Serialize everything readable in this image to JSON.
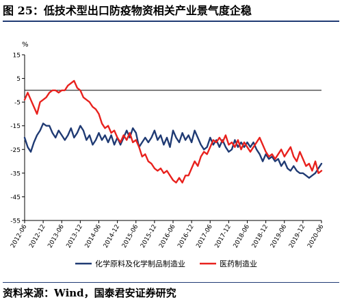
{
  "figure": {
    "title": "图 25：低技术型出口防疫物资相关产业景气度企稳",
    "source": "资料来源：Wind，国泰君安证券研究"
  },
  "chart_data": {
    "type": "line",
    "ylabel": "%",
    "ylim": [
      -55,
      15
    ],
    "yticks": [
      15,
      5,
      -5,
      -15,
      -25,
      -35,
      -45,
      -55
    ],
    "xlim": [
      "2012-06",
      "2020-06"
    ],
    "xticks": [
      "2012-06",
      "2012-12",
      "2013-06",
      "2013-12",
      "2014-06",
      "2014-12",
      "2015-06",
      "2015-12",
      "2016-06",
      "2016-12",
      "2017-06",
      "2017-12",
      "2018-06",
      "2018-12",
      "2019-06",
      "2019-12",
      "2020-06"
    ],
    "zero_line": true,
    "grid": false,
    "legend_position": "bottom",
    "series": [
      {
        "name": "化学原料及化学制品制造业",
        "color": "#1f3a73",
        "points": [
          [
            "2012-06",
            -20
          ],
          [
            "2012-07",
            -24
          ],
          [
            "2012-08",
            -26
          ],
          [
            "2012-09",
            -22
          ],
          [
            "2012-10",
            -19
          ],
          [
            "2012-11",
            -17
          ],
          [
            "2012-12",
            -14
          ],
          [
            "2013-01",
            -15
          ],
          [
            "2013-02",
            -15
          ],
          [
            "2013-03",
            -18
          ],
          [
            "2013-04",
            -20
          ],
          [
            "2013-05",
            -17
          ],
          [
            "2013-06",
            -19
          ],
          [
            "2013-07",
            -21
          ],
          [
            "2013-08",
            -19
          ],
          [
            "2013-09",
            -16
          ],
          [
            "2013-10",
            -20
          ],
          [
            "2013-11",
            -18
          ],
          [
            "2013-12",
            -15
          ],
          [
            "2014-01",
            -17
          ],
          [
            "2014-02",
            -21
          ],
          [
            "2014-03",
            -19
          ],
          [
            "2014-04",
            -23
          ],
          [
            "2014-05",
            -21
          ],
          [
            "2014-06",
            -18
          ],
          [
            "2014-07",
            -21
          ],
          [
            "2014-08",
            -19
          ],
          [
            "2014-09",
            -22
          ],
          [
            "2014-10",
            -19
          ],
          [
            "2014-11",
            -23
          ],
          [
            "2014-12",
            -20
          ],
          [
            "2015-01",
            -23
          ],
          [
            "2015-02",
            -20
          ],
          [
            "2015-03",
            -17
          ],
          [
            "2015-04",
            -20
          ],
          [
            "2015-05",
            -16
          ],
          [
            "2015-06",
            -18
          ],
          [
            "2015-07",
            -24
          ],
          [
            "2015-08",
            -22
          ],
          [
            "2015-09",
            -20
          ],
          [
            "2015-10",
            -22
          ],
          [
            "2015-11",
            -20
          ],
          [
            "2015-12",
            -17
          ],
          [
            "2016-01",
            -21
          ],
          [
            "2016-02",
            -19
          ],
          [
            "2016-03",
            -23
          ],
          [
            "2016-04",
            -20
          ],
          [
            "2016-05",
            -24
          ],
          [
            "2016-06",
            -17
          ],
          [
            "2016-07",
            -20
          ],
          [
            "2016-08",
            -22
          ],
          [
            "2016-09",
            -18
          ],
          [
            "2016-10",
            -21
          ],
          [
            "2016-11",
            -19
          ],
          [
            "2016-12",
            -22
          ],
          [
            "2017-01",
            -17
          ],
          [
            "2017-02",
            -20
          ],
          [
            "2017-03",
            -23
          ],
          [
            "2017-04",
            -25
          ],
          [
            "2017-05",
            -24
          ],
          [
            "2017-06",
            -20
          ],
          [
            "2017-07",
            -23
          ],
          [
            "2017-08",
            -21
          ],
          [
            "2017-09",
            -24
          ],
          [
            "2017-10",
            -21
          ],
          [
            "2017-11",
            -24
          ],
          [
            "2017-12",
            -26
          ],
          [
            "2018-01",
            -25
          ],
          [
            "2018-02",
            -21
          ],
          [
            "2018-03",
            -24
          ],
          [
            "2018-04",
            -22
          ],
          [
            "2018-05",
            -24
          ],
          [
            "2018-06",
            -22
          ],
          [
            "2018-07",
            -24
          ],
          [
            "2018-08",
            -22
          ],
          [
            "2018-09",
            -25
          ],
          [
            "2018-10",
            -27
          ],
          [
            "2018-11",
            -30
          ],
          [
            "2018-12",
            -27
          ],
          [
            "2019-01",
            -29
          ],
          [
            "2019-02",
            -28
          ],
          [
            "2019-03",
            -30
          ],
          [
            "2019-04",
            -29
          ],
          [
            "2019-05",
            -32
          ],
          [
            "2019-06",
            -30
          ],
          [
            "2019-07",
            -33
          ],
          [
            "2019-08",
            -34
          ],
          [
            "2019-09",
            -32
          ],
          [
            "2019-10",
            -34
          ],
          [
            "2019-11",
            -35
          ],
          [
            "2019-12",
            -35
          ],
          [
            "2020-01",
            -36
          ],
          [
            "2020-02",
            -37
          ],
          [
            "2020-03",
            -36
          ],
          [
            "2020-04",
            -35
          ],
          [
            "2020-05",
            -33
          ],
          [
            "2020-06",
            -31
          ]
        ]
      },
      {
        "name": "医药制造业",
        "color": "#e8211d",
        "points": [
          [
            "2012-06",
            -4
          ],
          [
            "2012-07",
            -1
          ],
          [
            "2012-08",
            -4
          ],
          [
            "2012-09",
            -7
          ],
          [
            "2012-10",
            -10
          ],
          [
            "2012-11",
            -5
          ],
          [
            "2012-12",
            -4
          ],
          [
            "2013-01",
            -3
          ],
          [
            "2013-02",
            -1
          ],
          [
            "2013-03",
            0
          ],
          [
            "2013-04",
            0
          ],
          [
            "2013-05",
            -1
          ],
          [
            "2013-06",
            0
          ],
          [
            "2013-07",
            0
          ],
          [
            "2013-08",
            2
          ],
          [
            "2013-09",
            3
          ],
          [
            "2013-10",
            4
          ],
          [
            "2013-11",
            1
          ],
          [
            "2013-12",
            0
          ],
          [
            "2014-01",
            -3
          ],
          [
            "2014-02",
            -4
          ],
          [
            "2014-03",
            -5
          ],
          [
            "2014-04",
            -7
          ],
          [
            "2014-05",
            -8
          ],
          [
            "2014-06",
            -10
          ],
          [
            "2014-07",
            -14
          ],
          [
            "2014-08",
            -16
          ],
          [
            "2014-09",
            -15
          ],
          [
            "2014-10",
            -18
          ],
          [
            "2014-11",
            -17
          ],
          [
            "2014-12",
            -20
          ],
          [
            "2015-01",
            -22
          ],
          [
            "2015-02",
            -19
          ],
          [
            "2015-03",
            -21
          ],
          [
            "2015-04",
            -18
          ],
          [
            "2015-05",
            -22
          ],
          [
            "2015-06",
            -21
          ],
          [
            "2015-07",
            -24
          ],
          [
            "2015-08",
            -28
          ],
          [
            "2015-09",
            -27
          ],
          [
            "2015-10",
            -30
          ],
          [
            "2015-11",
            -31
          ],
          [
            "2015-12",
            -33
          ],
          [
            "2016-01",
            -34
          ],
          [
            "2016-02",
            -33
          ],
          [
            "2016-03",
            -35
          ],
          [
            "2016-04",
            -34
          ],
          [
            "2016-05",
            -36
          ],
          [
            "2016-06",
            -38
          ],
          [
            "2016-07",
            -39
          ],
          [
            "2016-08",
            -37
          ],
          [
            "2016-09",
            -39
          ],
          [
            "2016-10",
            -36
          ],
          [
            "2016-11",
            -36
          ],
          [
            "2016-12",
            -33
          ],
          [
            "2017-01",
            -30
          ],
          [
            "2017-02",
            -32
          ],
          [
            "2017-03",
            -28
          ],
          [
            "2017-04",
            -26
          ],
          [
            "2017-05",
            -27
          ],
          [
            "2017-06",
            -24
          ],
          [
            "2017-07",
            -21
          ],
          [
            "2017-08",
            -22
          ],
          [
            "2017-09",
            -20
          ],
          [
            "2017-10",
            -22
          ],
          [
            "2017-11",
            -19
          ],
          [
            "2017-12",
            -23
          ],
          [
            "2018-01",
            -22
          ],
          [
            "2018-02",
            -24
          ],
          [
            "2018-03",
            -21
          ],
          [
            "2018-04",
            -25
          ],
          [
            "2018-05",
            -22
          ],
          [
            "2018-06",
            -24
          ],
          [
            "2018-07",
            -26
          ],
          [
            "2018-08",
            -24
          ],
          [
            "2018-09",
            -22
          ],
          [
            "2018-10",
            -20
          ],
          [
            "2018-11",
            -23
          ],
          [
            "2018-12",
            -26
          ],
          [
            "2019-01",
            -28
          ],
          [
            "2019-02",
            -27
          ],
          [
            "2019-03",
            -29
          ],
          [
            "2019-04",
            -27
          ],
          [
            "2019-05",
            -25
          ],
          [
            "2019-06",
            -28
          ],
          [
            "2019-07",
            -26
          ],
          [
            "2019-08",
            -24
          ],
          [
            "2019-09",
            -28
          ],
          [
            "2019-10",
            -30
          ],
          [
            "2019-11",
            -26
          ],
          [
            "2019-12",
            -29
          ],
          [
            "2020-01",
            -32
          ],
          [
            "2020-02",
            -31
          ],
          [
            "2020-03",
            -34
          ],
          [
            "2020-04",
            -30
          ],
          [
            "2020-05",
            -35
          ],
          [
            "2020-06",
            -34
          ]
        ]
      }
    ]
  }
}
